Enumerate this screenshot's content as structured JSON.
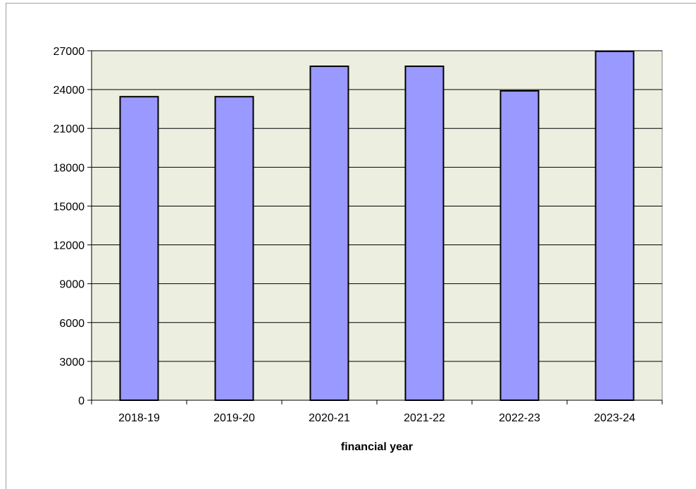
{
  "chart_data": {
    "type": "bar",
    "title": "",
    "xlabel": "financial year",
    "ylabel": "",
    "categories": [
      "2018-19",
      "2019-20",
      "2020-21",
      "2021-22",
      "2022-23",
      "2023-24"
    ],
    "values": [
      23450,
      23450,
      25800,
      25800,
      23900,
      26950
    ],
    "ylim": [
      0,
      27000
    ],
    "yticks": [
      0,
      3000,
      6000,
      9000,
      12000,
      15000,
      18000,
      21000,
      24000,
      27000
    ],
    "grid": true,
    "legend": "none",
    "colors": {
      "bar": "#9999ff",
      "bar_stroke": "#000000",
      "plot_bg": "#ecefdf",
      "grid": "#000000"
    }
  }
}
